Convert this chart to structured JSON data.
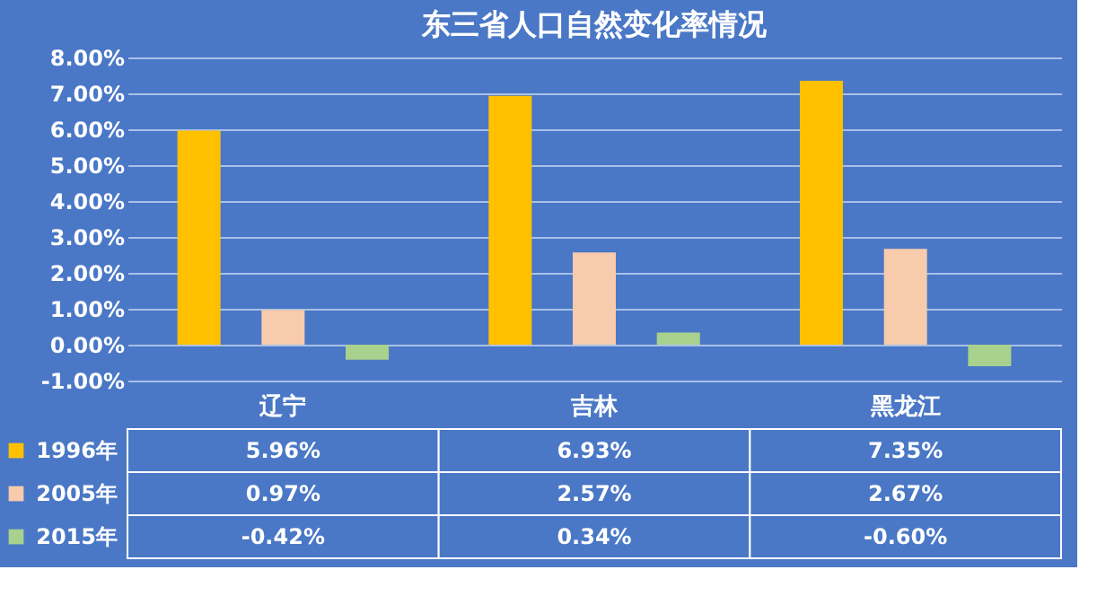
{
  "chart_data": {
    "type": "bar",
    "title": "东三省人口自然变化率情况",
    "categories": [
      "辽宁",
      "吉林",
      "黑龙江"
    ],
    "series": [
      {
        "name": "1996年",
        "color": "#ffc000",
        "values": [
          5.96,
          6.93,
          7.35
        ],
        "value_labels": [
          "5.96%",
          "6.93%",
          "7.35%"
        ]
      },
      {
        "name": "2005年",
        "color": "#f8cbad",
        "values": [
          0.97,
          2.57,
          2.67
        ],
        "value_labels": [
          "0.97%",
          "2.57%",
          "2.67%"
        ]
      },
      {
        "name": "2015年",
        "color": "#a9d18e",
        "values": [
          -0.42,
          0.34,
          -0.6
        ],
        "value_labels": [
          "-0.42%",
          "0.34%",
          "-0.60%"
        ]
      }
    ],
    "ylim": [
      -1,
      8
    ],
    "yticks": [
      {
        "value": -1,
        "label": "-1.00%"
      },
      {
        "value": 0,
        "label": "0.00%"
      },
      {
        "value": 1,
        "label": "1.00%"
      },
      {
        "value": 2,
        "label": "2.00%"
      },
      {
        "value": 3,
        "label": "3.00%"
      },
      {
        "value": 4,
        "label": "4.00%"
      },
      {
        "value": 5,
        "label": "5.00%"
      },
      {
        "value": 6,
        "label": "6.00%"
      },
      {
        "value": 7,
        "label": "7.00%"
      },
      {
        "value": 8,
        "label": "8.00%"
      }
    ],
    "grid": "y",
    "legend": "bottom"
  }
}
